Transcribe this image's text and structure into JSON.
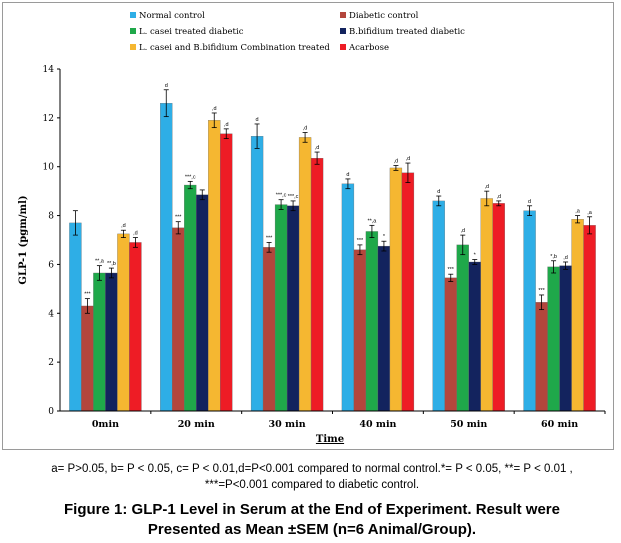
{
  "chart_data": {
    "type": "bar",
    "ylabel": "GLP-1 (pgm/ml)",
    "xlabel": "Time",
    "ylim": [
      0,
      14
    ],
    "yticks": [
      "0",
      "2",
      "4",
      "6",
      "8",
      "10",
      "12",
      "14"
    ],
    "categories": [
      "0min",
      "20 min",
      "30 min",
      "40 min",
      "50 min",
      "60 min"
    ],
    "legend_position": "top",
    "grid": false,
    "series": [
      {
        "name": "Normal control",
        "color": "#2EAEE6",
        "values": [
          7.7,
          12.6,
          11.25,
          9.3,
          8.6,
          8.2
        ],
        "errors": [
          0.5,
          0.55,
          0.5,
          0.2,
          0.2,
          0.2
        ],
        "labels": [
          "",
          "d",
          "d",
          "d",
          "d",
          "d"
        ]
      },
      {
        "name": "Diabetic control",
        "color": "#B3463C",
        "values": [
          4.3,
          7.5,
          6.7,
          6.6,
          5.45,
          4.45
        ],
        "errors": [
          0.3,
          0.25,
          0.2,
          0.2,
          0.15,
          0.3
        ],
        "labels": [
          "***",
          "***",
          "***",
          "***",
          "***",
          "***"
        ]
      },
      {
        "name": "L. casei treated diabetic",
        "color": "#1FA84A",
        "values": [
          5.65,
          9.25,
          8.45,
          7.35,
          6.8,
          5.9
        ],
        "errors": [
          0.3,
          0.15,
          0.2,
          0.25,
          0.4,
          0.25
        ],
        "labels": [
          "**,a",
          "***,c",
          "***,c",
          "**,a",
          ",d",
          "*,b"
        ]
      },
      {
        "name": "B.bifidium treated diabetic",
        "color": "#13235E",
        "values": [
          5.65,
          8.85,
          8.4,
          6.75,
          6.1,
          5.95
        ],
        "errors": [
          0.2,
          0.2,
          0.2,
          0.2,
          0.1,
          0.15
        ],
        "labels": [
          "**,b",
          "",
          "***,c",
          "*",
          "*",
          ",d"
        ]
      },
      {
        "name": "L. casei and  B.bifidium Combination treated",
        "color": "#F5B731",
        "values": [
          7.25,
          11.9,
          11.2,
          9.95,
          8.7,
          7.85
        ],
        "errors": [
          0.15,
          0.3,
          0.2,
          0.1,
          0.3,
          0.15
        ],
        "labels": [
          ",d",
          ",d",
          ",d",
          ",d",
          ",d",
          ",a"
        ]
      },
      {
        "name": "Acarbose",
        "color": "#EE1C25",
        "values": [
          6.9,
          11.35,
          10.35,
          9.75,
          8.5,
          7.6
        ],
        "errors": [
          0.2,
          0.2,
          0.25,
          0.4,
          0.1,
          0.35
        ],
        "labels": [
          ",d",
          ",d",
          ",d",
          ",d",
          ",d",
          ",a"
        ]
      }
    ]
  },
  "extra_labels": {
    "diabetic_30min": "***",
    "bifidium_20min": "***,a",
    "bifidium_40min": "***",
    "bifidium_50min": "***",
    "bifidium_60min": "***"
  },
  "footnote": {
    "line1": "a= P>0.05, b= P < 0.05,  c= P < 0.01,d=P<0.001 compared to normal control.*= P < 0.05, **= P < 0.01 ,",
    "line2": "***=P<0.001 compared to diabetic control."
  },
  "caption": {
    "line1": "Figure 1: GLP-1 Level in Serum at the End of Experiment. Result were",
    "line2": "Presented as Mean ±SEM (n=6 Animal/Group)."
  }
}
